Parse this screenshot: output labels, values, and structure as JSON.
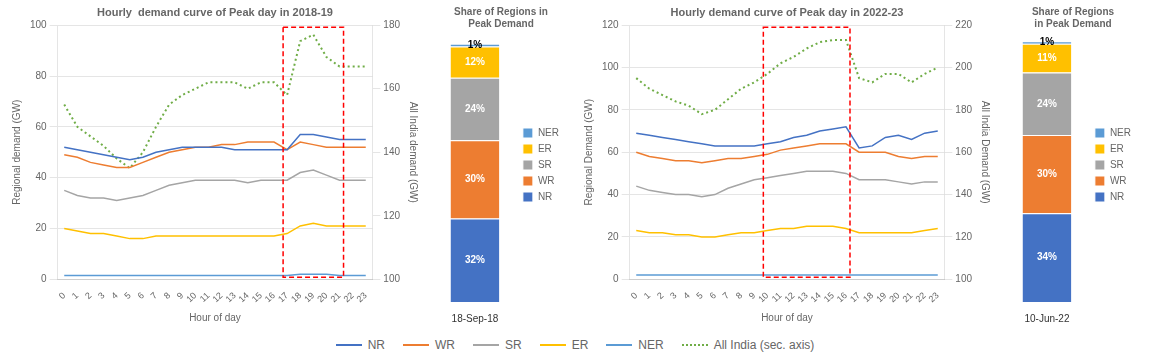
{
  "chart_data": [
    {
      "type": "line",
      "title": "Hourly  demand curve of Peak day in 2018-19",
      "x_label": "Hour of day",
      "y_label": "Regional demand (GW)",
      "y2_label": "All India demand (GW)",
      "x": [
        0,
        1,
        2,
        3,
        4,
        5,
        6,
        7,
        8,
        9,
        10,
        11,
        12,
        13,
        14,
        15,
        16,
        17,
        18,
        19,
        20,
        21,
        22,
        23
      ],
      "xlim": [
        -0.5,
        23.5
      ],
      "xticks": [
        0,
        1,
        2,
        3,
        4,
        5,
        6,
        7,
        8,
        9,
        10,
        11,
        12,
        13,
        14,
        15,
        16,
        17,
        18,
        19,
        20,
        21,
        22,
        23
      ],
      "ylim": [
        0,
        100
      ],
      "yticks": [
        0,
        20,
        40,
        60,
        80,
        100
      ],
      "y2lim": [
        100,
        180
      ],
      "y2ticks": [
        100,
        120,
        140,
        160,
        180
      ],
      "grid": true,
      "legend": "bottom",
      "highlight": {
        "x": [
          17,
          21
        ],
        "color": "red"
      },
      "series": [
        {
          "name": "NR",
          "color": "#4472C4",
          "values": [
            52,
            51,
            50,
            49,
            48,
            47,
            48,
            50,
            51,
            52,
            52,
            52,
            52,
            51,
            51,
            51,
            51,
            51,
            57,
            57,
            56,
            55,
            55,
            55
          ]
        },
        {
          "name": "WR",
          "color": "#ED7D31",
          "values": [
            49,
            48,
            46,
            45,
            44,
            44,
            46,
            48,
            50,
            51,
            52,
            52,
            53,
            53,
            54,
            54,
            54,
            51,
            54,
            53,
            52,
            52,
            52,
            52
          ]
        },
        {
          "name": "SR",
          "color": "#A5A5A5",
          "values": [
            35,
            33,
            32,
            32,
            31,
            32,
            33,
            35,
            37,
            38,
            39,
            39,
            39,
            39,
            38,
            39,
            39,
            39,
            42,
            43,
            41,
            39,
            39,
            39
          ]
        },
        {
          "name": "ER",
          "color": "#FFC000",
          "values": [
            20,
            19,
            18,
            18,
            17,
            16,
            16,
            17,
            17,
            17,
            17,
            17,
            17,
            17,
            17,
            17,
            17,
            18,
            21,
            22,
            21,
            21,
            21,
            21
          ]
        },
        {
          "name": "NER",
          "color": "#5B9BD5",
          "values": [
            1.5,
            1.5,
            1.5,
            1.5,
            1.5,
            1.5,
            1.5,
            1.5,
            1.5,
            1.5,
            1.5,
            1.5,
            1.5,
            1.5,
            1.5,
            1.5,
            1.5,
            1.5,
            2.0,
            2.0,
            2.0,
            1.5,
            1.5,
            1.5
          ]
        },
        {
          "name": "All India (sec. axis)",
          "color": "#70AD47",
          "axis": "y2",
          "line_style": "dotted",
          "values": [
            155,
            148,
            145,
            142,
            138,
            135,
            140,
            148,
            155,
            158,
            160,
            162,
            162,
            162,
            160,
            162,
            162,
            158,
            175,
            177,
            170,
            167,
            167,
            167
          ]
        }
      ]
    },
    {
      "type": "bar",
      "title": "Share of Regions in\nPeak Demand",
      "categories": [
        "18-Sep-18"
      ],
      "stacked": true,
      "ylim": [
        0,
        102
      ],
      "tick_labels": "x",
      "grid": false,
      "legend": "right",
      "data_labels": true,
      "series": [
        {
          "name": "NR",
          "color": "#4472C4",
          "values": [
            32
          ],
          "value_labels": [
            "32%"
          ]
        },
        {
          "name": "WR",
          "color": "#ED7D31",
          "values": [
            30
          ],
          "value_labels": [
            "30%"
          ]
        },
        {
          "name": "SR",
          "color": "#A5A5A5",
          "values": [
            24
          ],
          "value_labels": [
            "24%"
          ]
        },
        {
          "name": "ER",
          "color": "#FFC000",
          "values": [
            12
          ],
          "value_labels": [
            "12%"
          ]
        },
        {
          "name": "NER",
          "color": "#5B9BD5",
          "values": [
            1
          ],
          "value_labels": [
            "1%"
          ]
        }
      ]
    },
    {
      "type": "line",
      "title": "Hourly demand curve of Peak day in 2022-23",
      "x_label": "Hour of day",
      "y_label": "Regional Demand (GW)",
      "y2_label": "All India Demand (GW)",
      "x": [
        0,
        1,
        2,
        3,
        4,
        5,
        6,
        7,
        8,
        9,
        10,
        11,
        12,
        13,
        14,
        15,
        16,
        17,
        18,
        19,
        20,
        21,
        22,
        23
      ],
      "xlim": [
        -0.5,
        23.5
      ],
      "xticks": [
        0,
        1,
        2,
        3,
        4,
        5,
        6,
        7,
        8,
        9,
        10,
        11,
        12,
        13,
        14,
        15,
        16,
        17,
        18,
        19,
        20,
        21,
        22,
        23
      ],
      "ylim": [
        0,
        120
      ],
      "yticks": [
        0,
        20,
        40,
        60,
        80,
        100,
        120
      ],
      "y2lim": [
        100,
        220
      ],
      "y2ticks": [
        100,
        120,
        140,
        160,
        180,
        200,
        220
      ],
      "grid": true,
      "legend": "bottom",
      "highlight": {
        "x": [
          10,
          16
        ],
        "color": "red"
      },
      "series": [
        {
          "name": "NR",
          "color": "#4472C4",
          "values": [
            69,
            68,
            67,
            66,
            65,
            64,
            63,
            63,
            63,
            63,
            64,
            65,
            67,
            68,
            70,
            71,
            72,
            62,
            63,
            67,
            68,
            66,
            69,
            70
          ]
        },
        {
          "name": "WR",
          "color": "#ED7D31",
          "values": [
            60,
            58,
            57,
            56,
            56,
            55,
            56,
            57,
            57,
            58,
            59,
            61,
            62,
            63,
            64,
            64,
            64,
            60,
            60,
            60,
            58,
            57,
            58,
            58
          ]
        },
        {
          "name": "SR",
          "color": "#A5A5A5",
          "values": [
            44,
            42,
            41,
            40,
            40,
            39,
            40,
            43,
            45,
            47,
            48,
            49,
            50,
            51,
            51,
            51,
            50,
            47,
            47,
            47,
            46,
            45,
            46,
            46
          ]
        },
        {
          "name": "ER",
          "color": "#FFC000",
          "values": [
            23,
            22,
            22,
            21,
            21,
            20,
            20,
            21,
            22,
            22,
            23,
            24,
            24,
            25,
            25,
            25,
            24,
            22,
            22,
            22,
            22,
            22,
            23,
            24
          ]
        },
        {
          "name": "NER",
          "color": "#5B9BD5",
          "values": [
            2,
            2,
            2,
            2,
            2,
            2,
            2,
            2,
            2,
            2,
            2,
            2,
            2,
            2,
            2,
            2,
            2,
            2,
            2,
            2,
            2,
            2,
            2,
            2
          ]
        },
        {
          "name": "All India (sec. axis)",
          "color": "#70AD47",
          "axis": "y2",
          "line_style": "dotted",
          "values": [
            195,
            190,
            187,
            184,
            182,
            178,
            180,
            185,
            190,
            193,
            197,
            202,
            205,
            209,
            212,
            213,
            213,
            195,
            193,
            197,
            197,
            193,
            197,
            200
          ]
        }
      ]
    },
    {
      "type": "bar",
      "title": "Share of Regions\nin Peak Demand",
      "categories": [
        "10-Jun-22"
      ],
      "stacked": true,
      "ylim": [
        0,
        102
      ],
      "tick_labels": "x",
      "grid": false,
      "legend": "right",
      "data_labels": true,
      "series": [
        {
          "name": "NR",
          "color": "#4472C4",
          "values": [
            34
          ],
          "value_labels": [
            "34%"
          ]
        },
        {
          "name": "WR",
          "color": "#ED7D31",
          "values": [
            30
          ],
          "value_labels": [
            "30%"
          ]
        },
        {
          "name": "SR",
          "color": "#A5A5A5",
          "values": [
            24
          ],
          "value_labels": [
            "24%"
          ]
        },
        {
          "name": "ER",
          "color": "#FFC000",
          "values": [
            11
          ],
          "value_labels": [
            "11%"
          ]
        },
        {
          "name": "NER",
          "color": "#5B9BD5",
          "values": [
            1
          ],
          "value_labels": [
            "1%"
          ]
        }
      ]
    }
  ]
}
